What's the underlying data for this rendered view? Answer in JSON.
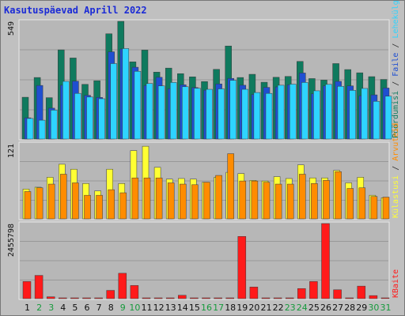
{
  "title": "Kasutuspäevad Aprill 2022",
  "colors": {
    "frame_bg": "#c0c0c0",
    "panel_bg": "#b7b7b7",
    "grid": "#999999",
    "hits": "#0f7a5e",
    "files": "#1f4fd1",
    "pages": "#2ed4ff",
    "visits": "#ffff33",
    "sites": "#ff8c00",
    "kbytes": "#ff1a1a",
    "weekend_label": "#169a3c",
    "weekday_label": "#101010"
  },
  "chart_data": [
    {
      "type": "bar",
      "title": "Kasutuspäevad Aprill 2022",
      "ylabel_max": "549",
      "ymax": 549,
      "right_label_parts": [
        {
          "text": "Pöördumisi",
          "color": "#0f7a5e"
        },
        {
          "text": " / ",
          "color": "#303030"
        },
        {
          "text": "Faile",
          "color": "#1f4fd1"
        },
        {
          "text": " / ",
          "color": "#303030"
        },
        {
          "text": "Lehekülgi",
          "color": "#2ed4ff"
        }
      ],
      "categories": [
        "1",
        "2",
        "3",
        "4",
        "5",
        "6",
        "7",
        "8",
        "9",
        "10",
        "11",
        "12",
        "13",
        "14",
        "15",
        "16",
        "17",
        "18",
        "19",
        "20",
        "21",
        "22",
        "23",
        "24",
        "25",
        "26",
        "27",
        "28",
        "29",
        "30",
        "31"
      ],
      "weekend_days": [
        "2",
        "3",
        "9",
        "10",
        "16",
        "17",
        "23",
        "24",
        "30",
        "31"
      ],
      "series": [
        {
          "name": "Pöördumisi",
          "values": [
            195,
            287,
            193,
            416,
            378,
            255,
            272,
            491,
            549,
            360,
            415,
            312,
            331,
            305,
            290,
            268,
            325,
            434,
            287,
            302,
            265,
            288,
            292,
            362,
            282,
            275,
            352,
            324,
            309,
            291,
            278
          ]
        },
        {
          "name": "Faile",
          "values": [
            99,
            250,
            144,
            251,
            270,
            204,
            194,
            407,
            420,
            335,
            250,
            288,
            235,
            253,
            240,
            228,
            257,
            283,
            251,
            208,
            241,
            243,
            253,
            308,
            211,
            248,
            269,
            248,
            202,
            206,
            238
          ]
        },
        {
          "name": "Lehekülgi",
          "values": [
            96,
            88,
            135,
            269,
            213,
            196,
            188,
            352,
            422,
            316,
            259,
            248,
            264,
            244,
            237,
            232,
            234,
            274,
            232,
            217,
            213,
            251,
            256,
            264,
            225,
            255,
            246,
            227,
            236,
            176,
            200
          ]
        }
      ]
    },
    {
      "type": "bar",
      "ylabel_max": "121",
      "ymax": 121,
      "right_label_parts": [
        {
          "text": "Külastusi",
          "color": "#ffff33"
        },
        {
          "text": " / ",
          "color": "#303030"
        },
        {
          "text": "Arvuteid",
          "color": "#ff8c00"
        }
      ],
      "categories": [
        "1",
        "2",
        "3",
        "4",
        "5",
        "6",
        "7",
        "8",
        "9",
        "10",
        "11",
        "12",
        "13",
        "14",
        "15",
        "16",
        "17",
        "18",
        "19",
        "20",
        "21",
        "22",
        "23",
        "24",
        "25",
        "26",
        "27",
        "28",
        "29",
        "30",
        "31"
      ],
      "series": [
        {
          "name": "Külastusi",
          "values": [
            48,
            51,
            67,
            88,
            80,
            57,
            45,
            80,
            57,
            110,
            117,
            83,
            64,
            65,
            64,
            59,
            67,
            75,
            73,
            62,
            61,
            68,
            65,
            87,
            66,
            66,
            78,
            58,
            67,
            38,
            34
          ]
        },
        {
          "name": "Arvuteid",
          "values": [
            44,
            50,
            56,
            72,
            58,
            38,
            38,
            47,
            42,
            66,
            66,
            66,
            58,
            56,
            55,
            59,
            70,
            105,
            61,
            61,
            59,
            56,
            56,
            72,
            57,
            62,
            76,
            49,
            50,
            36,
            35
          ]
        }
      ]
    },
    {
      "type": "bar",
      "ylabel_max": "2455798",
      "ymax": 2455798,
      "right_label_parts": [
        {
          "text": "KBaite",
          "color": "#ff1a1a"
        }
      ],
      "categories": [
        "1",
        "2",
        "3",
        "4",
        "5",
        "6",
        "7",
        "8",
        "9",
        "10",
        "11",
        "12",
        "13",
        "14",
        "15",
        "16",
        "17",
        "18",
        "19",
        "20",
        "21",
        "22",
        "23",
        "24",
        "25",
        "26",
        "27",
        "28",
        "29",
        "30",
        "31"
      ],
      "series": [
        {
          "name": "KBaite",
          "values": [
            560000,
            760000,
            60000,
            10000,
            10000,
            10000,
            10000,
            270000,
            830000,
            430000,
            10000,
            10000,
            10000,
            110000,
            10000,
            10000,
            10000,
            10000,
            2035000,
            380000,
            10000,
            10000,
            10000,
            330000,
            560000,
            2455798,
            290000,
            10000,
            410000,
            100000,
            10000
          ]
        }
      ]
    }
  ]
}
